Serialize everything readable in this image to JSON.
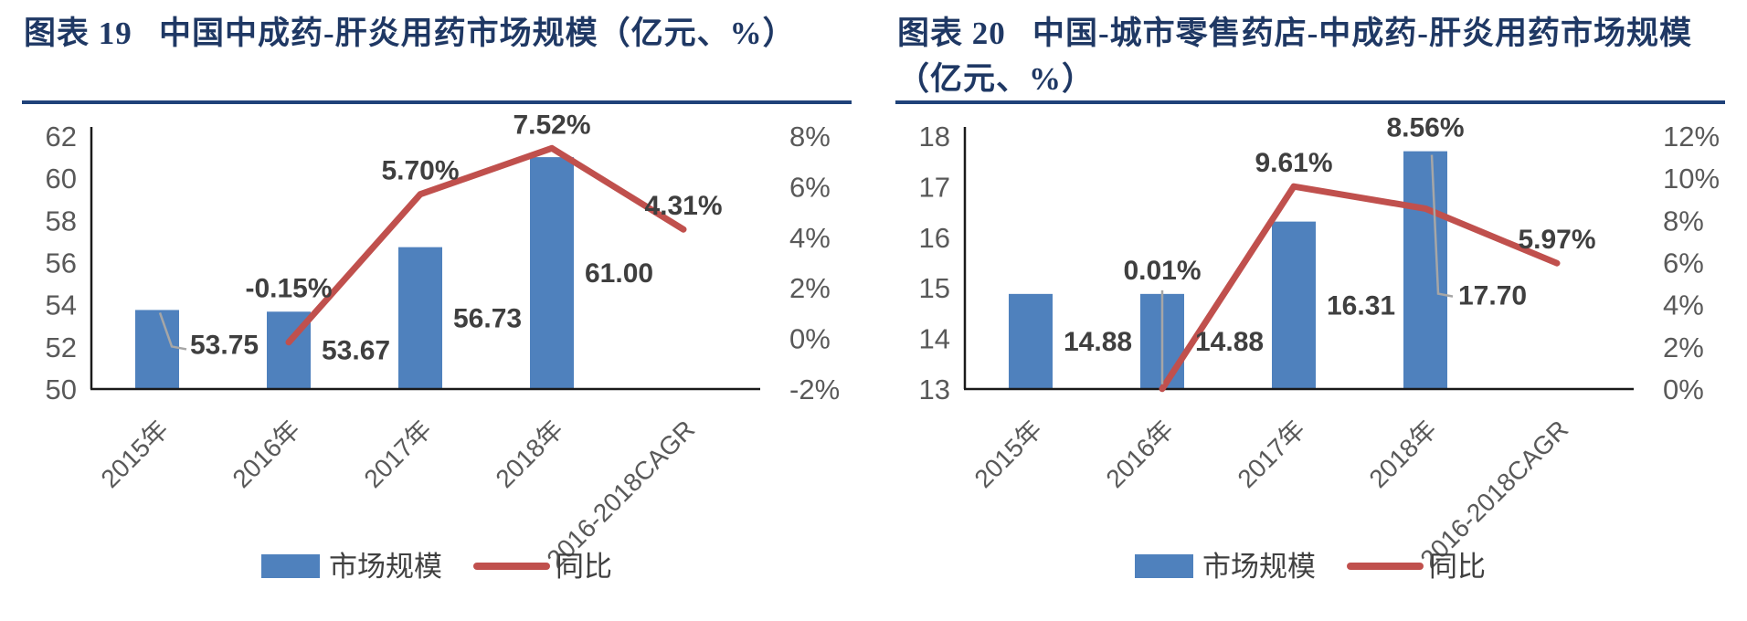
{
  "page": {
    "background": "#FFFFFF"
  },
  "colors": {
    "bar": "#4F81BD",
    "line": "#C0504D",
    "leader": "#A6A6A6",
    "axis": "#1A1A1A",
    "tick_text": "#595959",
    "label_text": "#3F3F3F",
    "legend_text": "#404040",
    "title": "#1F3864",
    "divider": "#1F4279"
  },
  "chart_data": [
    {
      "type": "combo",
      "title": "图表 19   中国中成药-肝炎用药市场规模（亿元、%）",
      "categories": [
        "2015年",
        "2016年",
        "2017年",
        "2018年",
        "2016-2018CAGR"
      ],
      "series": [
        {
          "name": "市场规模",
          "type": "bar",
          "axis": "left",
          "values": [
            53.75,
            53.67,
            56.73,
            61.0,
            null
          ],
          "data_labels": [
            "53.75",
            "53.67",
            "56.73",
            "61.00",
            ""
          ]
        },
        {
          "name": "同比",
          "type": "line",
          "axis": "right",
          "values": [
            null,
            -0.15,
            5.7,
            7.52,
            4.31
          ],
          "data_labels": [
            "",
            "-0.15%",
            "5.70%",
            "7.52%",
            "4.31%"
          ]
        }
      ],
      "left_axis": {
        "min": 50,
        "max": 62,
        "step": 2,
        "tick_labels": [
          "62",
          "60",
          "58",
          "56",
          "54",
          "52",
          "50"
        ]
      },
      "right_axis": {
        "min": -2,
        "max": 8,
        "step": 2,
        "tick_labels": [
          "8%",
          "6%",
          "4%",
          "2%",
          "0%",
          "-2%"
        ]
      },
      "legend": {
        "position": "bottom",
        "entries": [
          "市场规模",
          "同比"
        ]
      },
      "grid": false
    },
    {
      "type": "combo",
      "title": "图表 20   中国-城市零售药店-中成药-肝炎用药市场规模（亿元、%）",
      "categories": [
        "2015年",
        "2016年",
        "2017年",
        "2018年",
        "2016-2018CAGR"
      ],
      "series": [
        {
          "name": "市场规模",
          "type": "bar",
          "axis": "left",
          "values": [
            14.88,
            14.88,
            16.31,
            17.7,
            null
          ],
          "data_labels": [
            "14.88",
            "14.88",
            "16.31",
            "17.70",
            ""
          ]
        },
        {
          "name": "同比",
          "type": "line",
          "axis": "right",
          "values": [
            null,
            0.01,
            9.61,
            8.56,
            5.97
          ],
          "data_labels": [
            "",
            "0.01%",
            "9.61%",
            "8.56%",
            "5.97%"
          ]
        }
      ],
      "left_axis": {
        "min": 13,
        "max": 18,
        "step": 1,
        "tick_labels": [
          "18",
          "17",
          "16",
          "15",
          "14",
          "13"
        ]
      },
      "right_axis": {
        "min": 0,
        "max": 12,
        "step": 2,
        "tick_labels": [
          "12%",
          "10%",
          "8%",
          "6%",
          "4%",
          "2%",
          "0%"
        ]
      },
      "legend": {
        "position": "bottom",
        "entries": [
          "市场规模",
          "同比"
        ]
      },
      "grid": false
    }
  ]
}
